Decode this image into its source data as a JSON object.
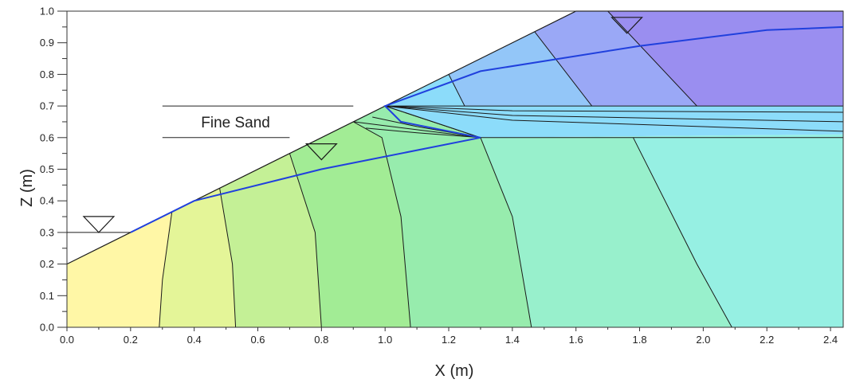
{
  "chart_data": {
    "type": "contour",
    "xlabel": "X (m)",
    "ylabel": "Z (m)",
    "xlim": [
      0,
      2.44
    ],
    "ylim": [
      0,
      1.0
    ],
    "x_ticks": [
      "0.0",
      "0.2",
      "0.4",
      "0.6",
      "0.8",
      "1.0",
      "1.2",
      "1.4",
      "1.6",
      "1.8",
      "2.0",
      "2.2",
      "2.4"
    ],
    "y_ticks": [
      "0.0",
      "0.1",
      "0.2",
      "0.3",
      "0.4",
      "0.5",
      "0.6",
      "0.7",
      "0.8",
      "0.9",
      "1.0"
    ],
    "annotation": {
      "text": "Fine Sand",
      "x": 0.53,
      "y": 0.65
    },
    "layer_lines": [
      {
        "x": [
          0.3,
          0.9
        ],
        "y": [
          0.7,
          0.7
        ]
      },
      {
        "x": [
          0.3,
          0.7
        ],
        "y": [
          0.6,
          0.6
        ]
      }
    ],
    "slope_surface": {
      "x": [
        0.0,
        1.6,
        2.44
      ],
      "y": [
        0.2,
        1.0,
        1.0
      ]
    },
    "water_table": {
      "x": [
        0.2,
        0.4,
        0.8,
        1.3,
        1.05,
        1.02,
        1.0,
        1.3,
        1.8,
        2.2,
        2.44
      ],
      "y": [
        0.3,
        0.4,
        0.5,
        0.6,
        0.65,
        0.68,
        0.7,
        0.81,
        0.89,
        0.94,
        0.95
      ]
    },
    "water_level_markers": [
      {
        "x": 0.1,
        "y": 0.3
      },
      {
        "x": 0.8,
        "y": 0.53
      },
      {
        "x": 1.76,
        "y": 0.93
      }
    ],
    "colors": {
      "yellow": "#fff7a6",
      "yellow_green": "#e4f598",
      "light_green": "#c4f096",
      "green": "#a2ec95",
      "mint": "#97ecad",
      "aqua_green": "#98f0cc",
      "aqua": "#96f0e3",
      "sky": "#8cdcfa",
      "light_blue": "#93c6f8",
      "blue": "#9aa8f6",
      "violet": "#9a8ef0",
      "water_table_line": "#2040dd"
    }
  }
}
